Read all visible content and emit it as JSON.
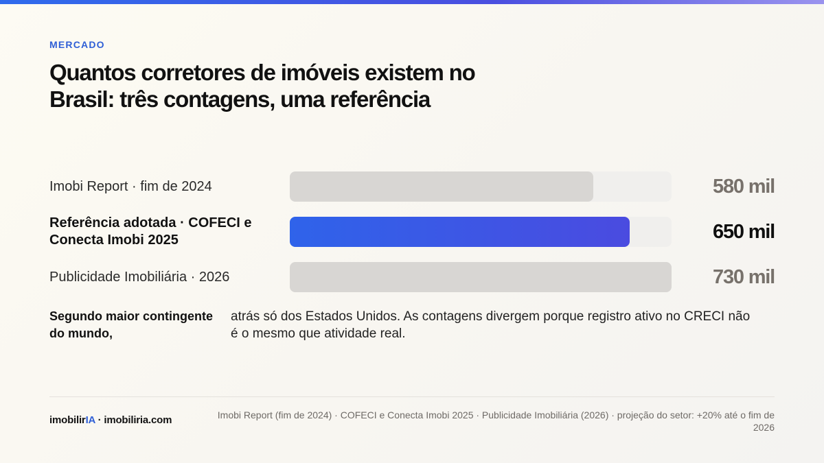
{
  "eyebrow": "MERCADO",
  "title": "Quantos corretores de imóveis existem no Brasil: três contagens, uma referência",
  "chart_data": {
    "type": "bar",
    "orientation": "horizontal",
    "xlim": [
      0,
      730
    ],
    "unit": "mil",
    "categories": [
      "Imobi Report · fim de 2024",
      "Referência adotada · COFECI e Conecta Imobi 2025",
      "Publicidade Imobiliária · 2026"
    ],
    "values": [
      580,
      650,
      730
    ],
    "value_labels": [
      "580 mil",
      "650 mil",
      "730 mil"
    ],
    "highlight_index": 1,
    "colors": {
      "bar": "#d8d6d3",
      "highlight_start": "#2f63ea",
      "highlight_end": "#4a4be0",
      "track": "#f0efed"
    }
  },
  "note": {
    "lead": "Segundo maior contingente do mundo,",
    "body": "atrás só dos Estados Unidos. As contagens divergem porque registro ativo no CRECI não é o mesmo que atividade real."
  },
  "footer": {
    "brand_prefix": "imobilir",
    "brand_accent": "IA",
    "brand_suffix": " · imobiliria.com",
    "source": "Imobi Report (fim de 2024) · COFECI e Conecta Imobi 2025 · Publicidade Imobiliária (2026) · projeção do setor: +20% até o fim de 2026"
  }
}
